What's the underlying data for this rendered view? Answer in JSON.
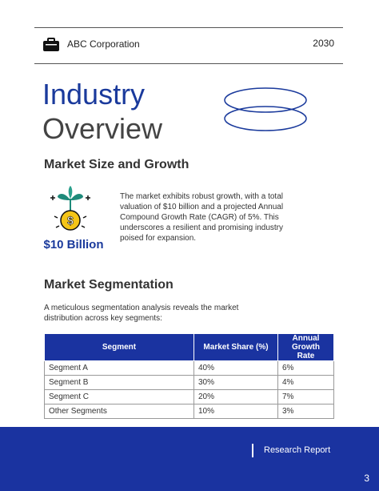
{
  "header": {
    "company": "ABC Corporation",
    "year": "2030"
  },
  "title": {
    "line1": "Industry",
    "line2": "Overview"
  },
  "market": {
    "heading": "Market Size and Growth",
    "figure": "$10 Billion",
    "text": "The market exhibits robust growth, with a total valuation of $10 billion and a projected Annual Compound Growth Rate (CAGR) of 5%. This underscores a resilient and promising industry poised for expansion."
  },
  "segmentation": {
    "heading": "Market Segmentation",
    "intro": "A meticulous segmentation analysis reveals the market distribution across key segments:"
  },
  "table": {
    "header": [
      "Segment",
      "Market Share (%)",
      "Annual Growth Rate"
    ],
    "rows": [
      [
        "Segment A",
        "40%",
        "6%"
      ],
      [
        "Segment B",
        "30%",
        "4%"
      ],
      [
        "Segment C",
        "20%",
        "7%"
      ],
      [
        "Other Segments",
        "10%",
        "3%"
      ]
    ]
  },
  "footer": {
    "label": "Research Report",
    "page": "3"
  }
}
